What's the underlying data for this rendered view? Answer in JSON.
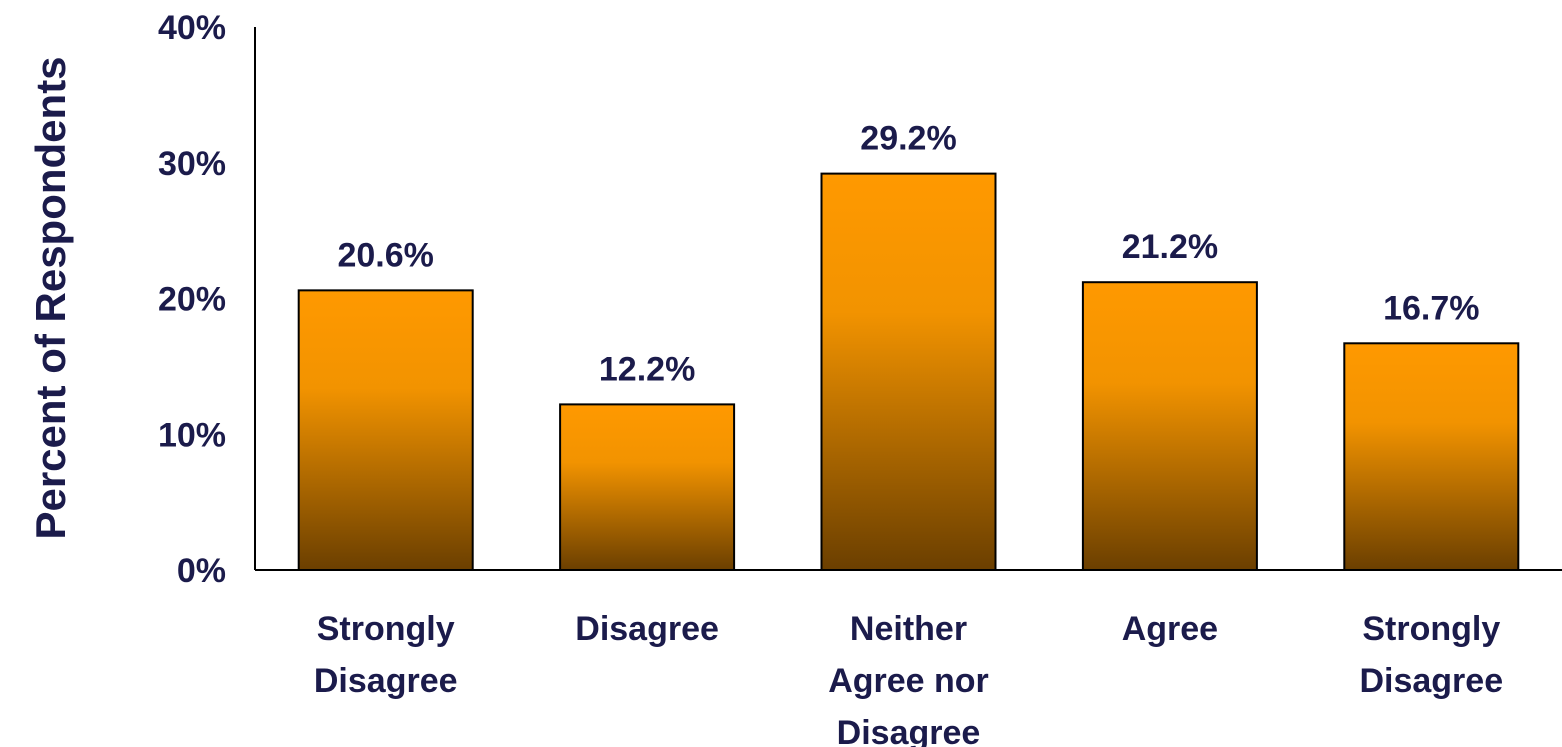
{
  "chart_data": {
    "type": "bar",
    "categories": [
      [
        "Strongly",
        "Disagree"
      ],
      [
        "Disagree"
      ],
      [
        "Neither",
        "Agree nor",
        "Disagree"
      ],
      [
        "Agree"
      ],
      [
        "Strongly",
        "Disagree"
      ]
    ],
    "values": [
      20.6,
      12.2,
      29.2,
      21.2,
      16.7
    ],
    "data_labels": [
      "20.6%",
      "12.2%",
      "29.2%",
      "21.2%",
      "16.7%"
    ],
    "title": "",
    "xlabel": "",
    "ylabel": "Percent of Respondents",
    "ylim": [
      0,
      40
    ],
    "yticks": [
      0,
      10,
      20,
      30,
      40
    ],
    "ytick_labels": [
      "0%",
      "10%",
      "20%",
      "30%",
      "40%"
    ],
    "grid": false,
    "legend": "none",
    "colors": {
      "bar_top": "#ff9900",
      "bar_bottom": "#6b3f00",
      "bar_outline": "#000000",
      "text": "#1b1b4b",
      "axis": "#000000"
    }
  }
}
